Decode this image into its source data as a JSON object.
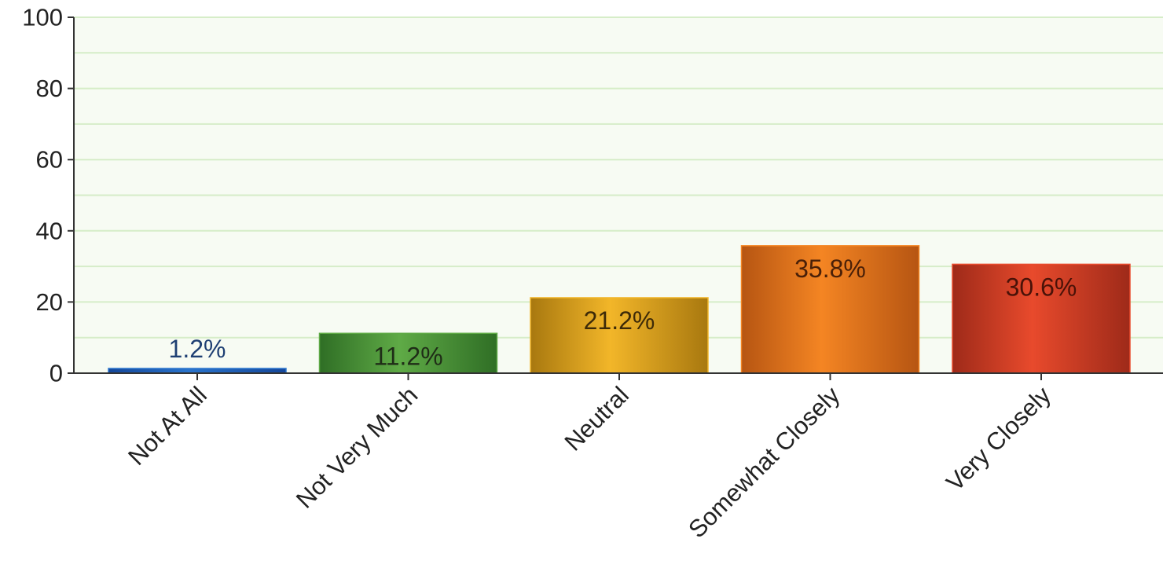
{
  "chart_data": {
    "type": "bar",
    "title": "",
    "xlabel": "",
    "ylabel": "",
    "categories": [
      "Not At All",
      "Not Very Much",
      "Neutral",
      "Somewhat Closely",
      "Very Closely"
    ],
    "values": [
      1.2,
      11.2,
      21.2,
      35.8,
      30.6
    ],
    "data_labels": [
      "1.2%",
      "11.2%",
      "21.2%",
      "35.8%",
      "30.6%"
    ],
    "ylim": [
      0,
      100
    ],
    "yticks": [
      0,
      20,
      40,
      60,
      80,
      100
    ],
    "ytick_labels": [
      "0",
      "20",
      "40",
      "60",
      "80",
      "100"
    ],
    "grid": true,
    "legend": "none",
    "plot_background": "#f7fbf3",
    "gridline_color": "#d6edc8",
    "bar_colors": [
      {
        "light": "#2a74cc",
        "dark": "#15479a"
      },
      {
        "light": "#5faa46",
        "dark": "#2f6e25"
      },
      {
        "light": "#f2b629",
        "dark": "#a8780f"
      },
      {
        "light": "#f48523",
        "dark": "#b65512"
      },
      {
        "light": "#e84a2c",
        "dark": "#9e2a19"
      }
    ],
    "data_label_colors": [
      "#1e3f73",
      "#1f2d17",
      "#3d2a08",
      "#4a2008",
      "#4a1208"
    ]
  }
}
